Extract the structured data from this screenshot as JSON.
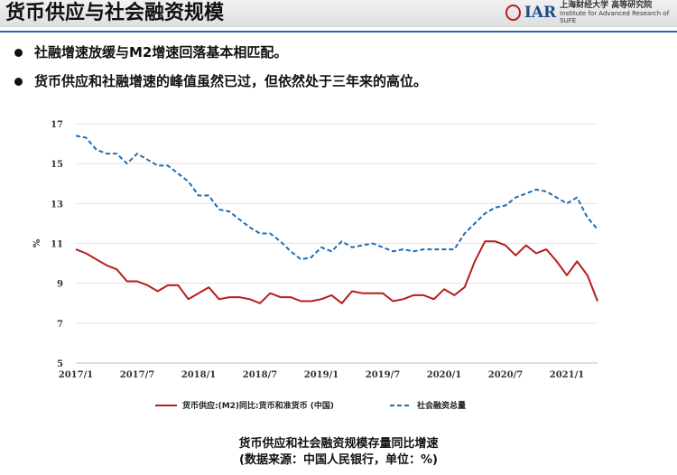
{
  "header": {
    "title": "货币供应与社会融资规模",
    "logo_mark": "IAR",
    "logo_cn": "上海财经大学 高等研究院",
    "logo_en": "Institute for Advanced Research of SUFE"
  },
  "bullets": [
    "社融增速放缓与M2增速回落基本相匹配。",
    "货币供应和社融增速的峰值虽然已过，但依然处于三年来的高位。"
  ],
  "caption": {
    "line1": "货币供应和社会融资规模存量同比增速",
    "line2": "(数据来源：中国人民银行，单位：%)"
  },
  "chart_data": {
    "type": "line",
    "ylabel": "%",
    "ylim": [
      5,
      17
    ],
    "yticks": [
      5,
      7,
      9,
      11,
      13,
      15,
      17
    ],
    "xtick_labels": [
      "2017/1",
      "2017/7",
      "2018/1",
      "2018/7",
      "2019/1",
      "2019/7",
      "2020/1",
      "2020/7",
      "2021/1"
    ],
    "x": [
      "2017/1",
      "2017/2",
      "2017/3",
      "2017/4",
      "2017/5",
      "2017/6",
      "2017/7",
      "2017/8",
      "2017/9",
      "2017/10",
      "2017/11",
      "2017/12",
      "2018/1",
      "2018/2",
      "2018/3",
      "2018/4",
      "2018/5",
      "2018/6",
      "2018/7",
      "2018/8",
      "2018/9",
      "2018/10",
      "2018/11",
      "2018/12",
      "2019/1",
      "2019/2",
      "2019/3",
      "2019/4",
      "2019/5",
      "2019/6",
      "2019/7",
      "2019/8",
      "2019/9",
      "2019/10",
      "2019/11",
      "2019/12",
      "2020/1",
      "2020/2",
      "2020/3",
      "2020/4",
      "2020/5",
      "2020/6",
      "2020/7",
      "2020/8",
      "2020/9",
      "2020/10",
      "2020/11",
      "2020/12",
      "2021/1",
      "2021/2",
      "2021/3",
      "2021/4"
    ],
    "series": [
      {
        "name": "货币供应:(M2)同比:货币和准货币 (中国)",
        "color": "#b71c1c",
        "style": "solid",
        "values": [
          10.7,
          10.5,
          10.2,
          9.9,
          9.7,
          9.1,
          9.1,
          8.9,
          8.6,
          8.9,
          8.9,
          8.2,
          8.5,
          8.8,
          8.2,
          8.3,
          8.3,
          8.2,
          8.0,
          8.5,
          8.3,
          8.3,
          8.1,
          8.1,
          8.2,
          8.4,
          8.0,
          8.6,
          8.5,
          8.5,
          8.5,
          8.1,
          8.2,
          8.4,
          8.4,
          8.2,
          8.7,
          8.4,
          8.8,
          10.1,
          11.1,
          11.1,
          10.9,
          10.4,
          10.9,
          10.5,
          10.7,
          10.1,
          9.4,
          10.1,
          9.4,
          8.1
        ]
      },
      {
        "name": "社会融资总量",
        "color": "#1f6db2",
        "style": "dashed",
        "values": [
          16.4,
          16.3,
          15.7,
          15.5,
          15.5,
          15.0,
          15.5,
          15.2,
          14.9,
          14.9,
          14.5,
          14.1,
          13.4,
          13.4,
          12.7,
          12.6,
          12.2,
          11.8,
          11.5,
          11.5,
          11.1,
          10.6,
          10.2,
          10.3,
          10.8,
          10.6,
          11.1,
          10.8,
          10.9,
          11.0,
          10.8,
          10.6,
          10.7,
          10.6,
          10.7,
          10.7,
          10.7,
          10.7,
          11.5,
          12.0,
          12.5,
          12.8,
          12.9,
          13.3,
          13.5,
          13.7,
          13.6,
          13.3,
          13.0,
          13.3,
          12.3,
          11.7
        ]
      }
    ],
    "legend_position": "bottom",
    "grid": true
  }
}
